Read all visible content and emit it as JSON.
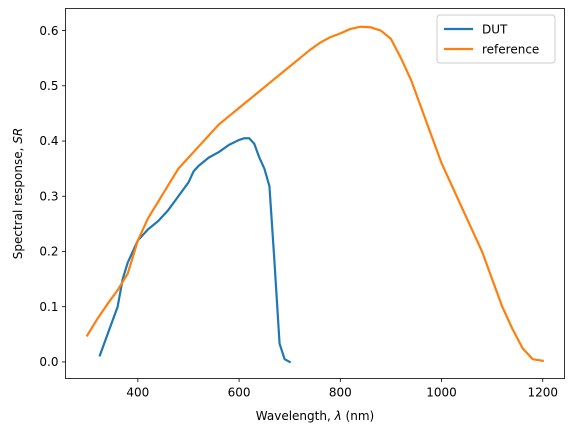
{
  "chart_data": {
    "type": "line",
    "title": "",
    "xlabel": "Wavelength, λ (nm)",
    "ylabel": "Spectral response, SR",
    "xlim": [
      257,
      1243
    ],
    "ylim": [
      -0.03,
      0.64
    ],
    "xticks": [
      400,
      600,
      800,
      1000,
      1200
    ],
    "yticks": [
      0.0,
      0.1,
      0.2,
      0.3,
      0.4,
      0.5,
      0.6
    ],
    "legend_position": "top-right",
    "grid": false,
    "series": [
      {
        "name": "DUT",
        "color": "#1f77b4",
        "x": [
          325,
          340,
          360,
          370,
          380,
          390,
          400,
          420,
          440,
          460,
          480,
          500,
          510,
          520,
          540,
          560,
          580,
          600,
          610,
          620,
          630,
          640,
          650,
          660,
          670,
          680,
          690,
          700
        ],
        "y": [
          0.012,
          0.05,
          0.1,
          0.15,
          0.18,
          0.2,
          0.22,
          0.24,
          0.255,
          0.275,
          0.3,
          0.325,
          0.345,
          0.355,
          0.37,
          0.38,
          0.393,
          0.402,
          0.405,
          0.405,
          0.395,
          0.37,
          0.35,
          0.318,
          0.18,
          0.033,
          0.005,
          0.0
        ]
      },
      {
        "name": "reference",
        "color": "#ff7f0e",
        "x": [
          300,
          320,
          340,
          360,
          380,
          400,
          420,
          440,
          460,
          480,
          500,
          520,
          540,
          560,
          580,
          600,
          620,
          640,
          660,
          680,
          700,
          720,
          740,
          760,
          780,
          800,
          820,
          840,
          860,
          880,
          900,
          920,
          940,
          960,
          980,
          1000,
          1020,
          1040,
          1060,
          1080,
          1100,
          1120,
          1140,
          1160,
          1180,
          1200
        ],
        "y": [
          0.048,
          0.078,
          0.105,
          0.13,
          0.16,
          0.22,
          0.26,
          0.29,
          0.32,
          0.35,
          0.37,
          0.39,
          0.41,
          0.43,
          0.445,
          0.46,
          0.475,
          0.49,
          0.505,
          0.52,
          0.535,
          0.55,
          0.565,
          0.578,
          0.588,
          0.595,
          0.603,
          0.607,
          0.606,
          0.6,
          0.585,
          0.55,
          0.51,
          0.46,
          0.41,
          0.36,
          0.32,
          0.28,
          0.24,
          0.2,
          0.15,
          0.1,
          0.06,
          0.025,
          0.005,
          0.002
        ]
      }
    ]
  }
}
